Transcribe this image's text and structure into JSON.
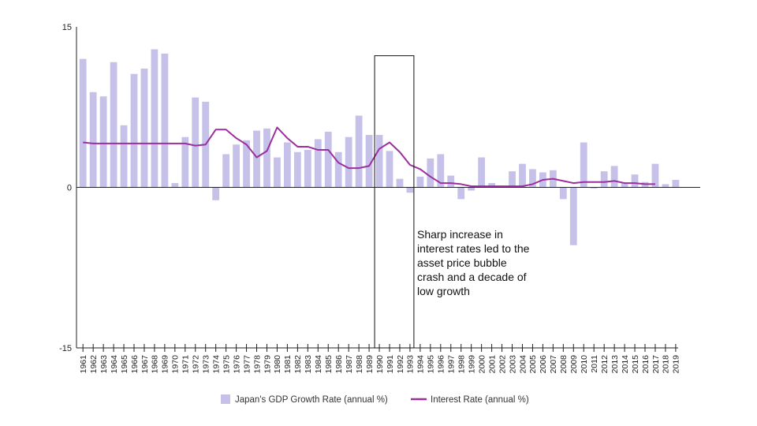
{
  "chart_data": {
    "type": "bar",
    "title": "",
    "xlabel": "",
    "ylabel": "",
    "ylim": [
      -15,
      15
    ],
    "yticks": [
      "15",
      "0",
      "-15"
    ],
    "grid": false,
    "legend_position": "bottom",
    "categories": [
      "1961",
      "1962",
      "1963",
      "1964",
      "1965",
      "1966",
      "1967",
      "1968",
      "1969",
      "1970",
      "1971",
      "1972",
      "1973",
      "1974",
      "1975",
      "1976",
      "1977",
      "1978",
      "1979",
      "1980",
      "1981",
      "1982",
      "1983",
      "1984",
      "1985",
      "1986",
      "1987",
      "1988",
      "1989",
      "1990",
      "1991",
      "1992",
      "1993",
      "1994",
      "1995",
      "1996",
      "1997",
      "1998",
      "1999",
      "2000",
      "2001",
      "2002",
      "2003",
      "2004",
      "2005",
      "2006",
      "2007",
      "2008",
      "2009",
      "2010",
      "2011",
      "2012",
      "2013",
      "2014",
      "2015",
      "2016",
      "2017",
      "2018",
      "2019"
    ],
    "series": [
      {
        "name": "Japan's GDP Growth Rate (annual %)",
        "type": "bar",
        "color": "#c6c1e8",
        "values": [
          12.0,
          8.9,
          8.5,
          11.7,
          5.8,
          10.6,
          11.1,
          12.9,
          12.5,
          0.4,
          4.7,
          8.4,
          8.0,
          -1.2,
          3.1,
          4.0,
          4.4,
          5.3,
          5.5,
          2.8,
          4.2,
          3.3,
          3.5,
          4.5,
          5.2,
          3.3,
          4.7,
          6.7,
          4.9,
          4.9,
          3.4,
          0.8,
          -0.5,
          1.0,
          2.7,
          3.1,
          1.1,
          -1.1,
          -0.3,
          2.8,
          0.4,
          0.1,
          1.5,
          2.2,
          1.7,
          1.4,
          1.6,
          -1.1,
          -5.4,
          4.2,
          -0.1,
          1.5,
          2.0,
          0.4,
          1.2,
          0.5,
          2.2,
          0.3,
          0.7
        ]
      },
      {
        "name": "Interest Rate (annual %)",
        "type": "line",
        "color": "#9b2f9e",
        "values": [
          4.2,
          4.1,
          4.1,
          4.1,
          4.1,
          4.1,
          4.1,
          4.1,
          4.1,
          4.1,
          4.1,
          3.9,
          4.0,
          5.4,
          5.4,
          4.6,
          4.0,
          2.8,
          3.4,
          5.6,
          4.6,
          3.8,
          3.8,
          3.5,
          3.5,
          2.3,
          1.8,
          1.8,
          2.0,
          3.6,
          4.2,
          3.3,
          2.1,
          1.7,
          1.0,
          0.4,
          0.4,
          0.3,
          0.1,
          0.1,
          0.1,
          0.1,
          0.1,
          0.1,
          0.3,
          0.7,
          0.8,
          0.6,
          0.4,
          0.5,
          0.5,
          0.5,
          0.6,
          0.4,
          0.4,
          0.3,
          0.3,
          null,
          null
        ]
      }
    ],
    "highlight": {
      "from": "1990",
      "to": "1993",
      "ymax": 12.3
    },
    "annotation": {
      "lines": [
        "Sharp increase in",
        "interest rates led to the",
        "asset price bubble",
        "crash and a decade of",
        "low growth"
      ]
    }
  }
}
